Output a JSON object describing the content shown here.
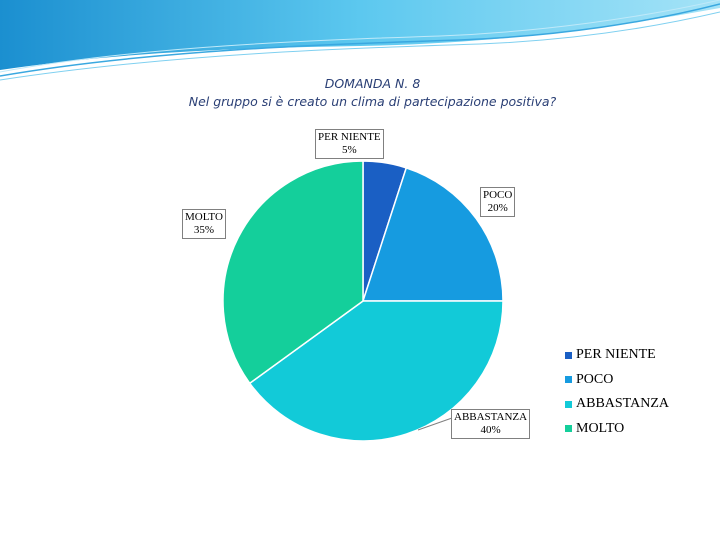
{
  "title_line1": "DOMANDA N. 8",
  "title_line2": "Nel gruppo si è creato un clima di partecipazione positiva?",
  "chart_data": {
    "type": "pie",
    "title": "DOMANDA N. 8 — Nel gruppo si è creato un clima di partecipazione positiva?",
    "categories": [
      "PER NIENTE",
      "POCO",
      "ABBASTANZA",
      "MOLTO"
    ],
    "values": [
      5,
      20,
      40,
      35
    ],
    "labels": [
      "5%",
      "20%",
      "40%",
      "35%"
    ],
    "colors": [
      "#1a5fc4",
      "#169be0",
      "#12cad8",
      "#14cf9b"
    ],
    "legend": "right",
    "start": "top, clockwise"
  },
  "legend_items": [
    "PER NIENTE",
    "POCO",
    "ABBASTANZA",
    "MOLTO"
  ]
}
